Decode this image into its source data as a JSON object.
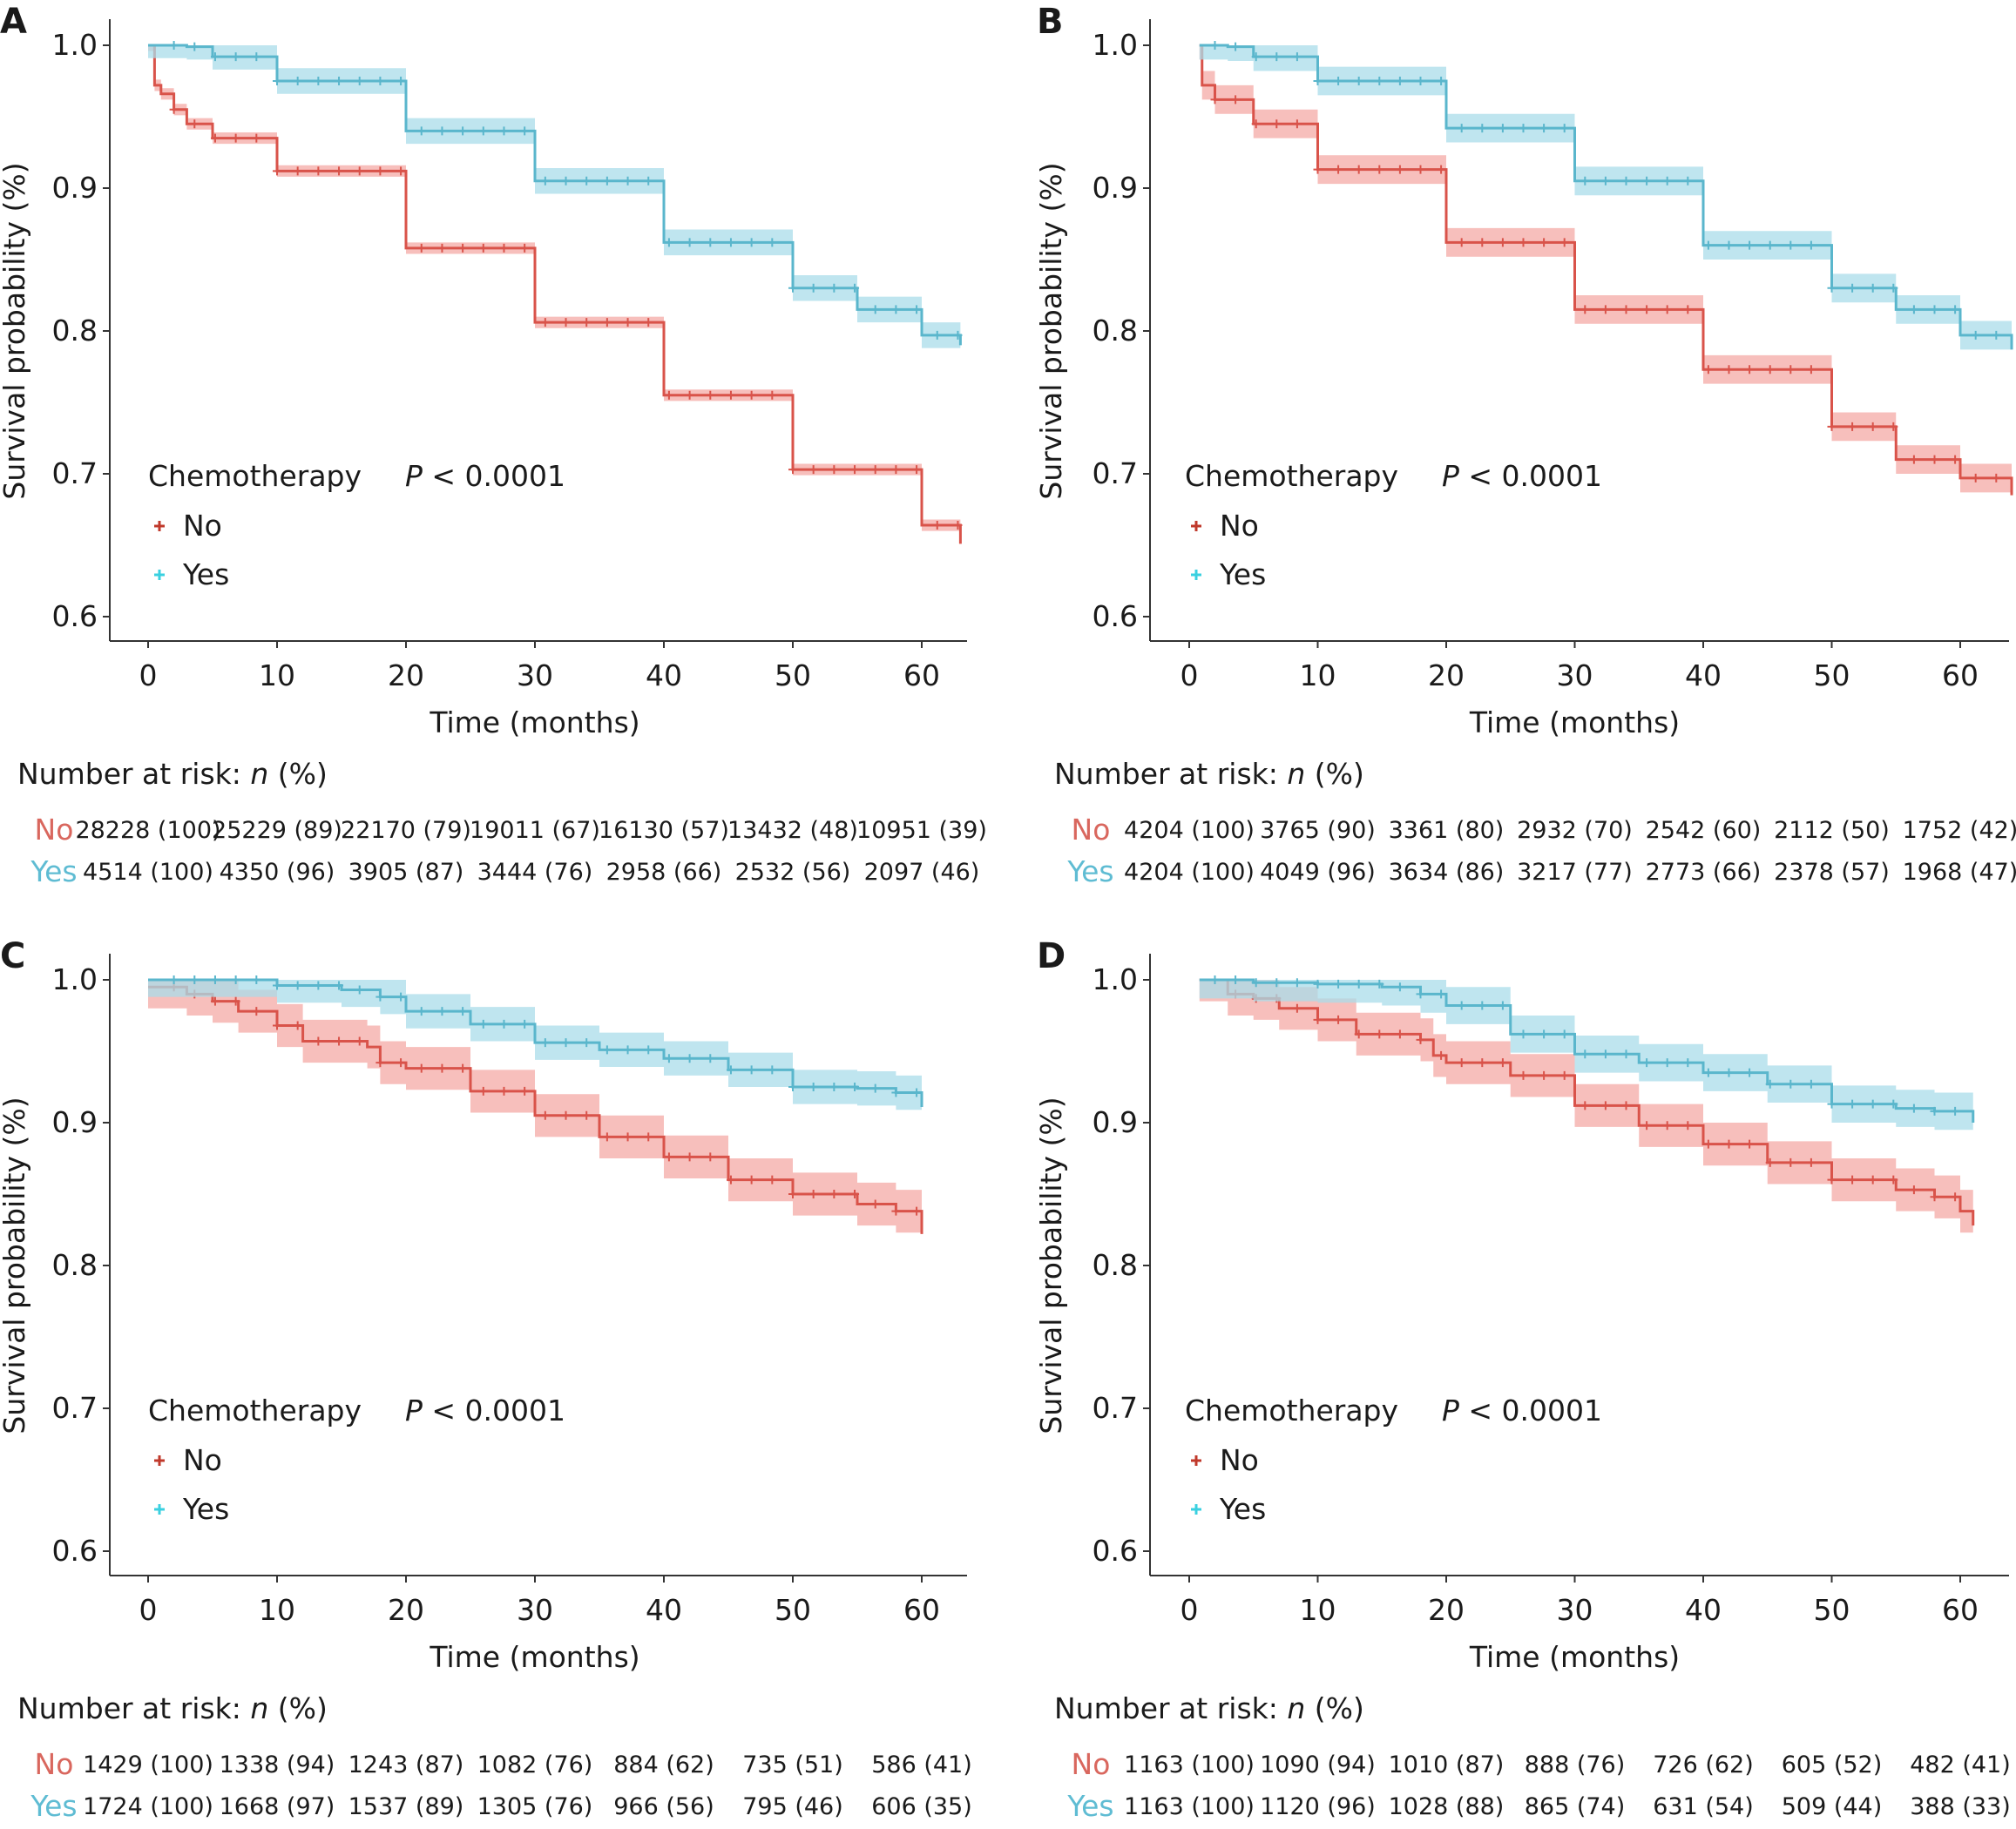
{
  "colors": {
    "no": "#d9534a",
    "no_band": "#f4aaa6",
    "yes": "#5ab6cc",
    "yes_band": "#aadcea",
    "no_label": "#d9675e",
    "yes_label": "#5fbcd3",
    "legend_no_marker": "#c0392b",
    "legend_yes_marker": "#3ad0e0"
  },
  "chart_data": [
    {
      "panel": "A",
      "type": "line",
      "xlabel": "Time (months)",
      "ylabel": "Survival probability (%)",
      "xlim": [
        0,
        63
      ],
      "ylim": [
        0.6,
        1.0
      ],
      "xticks": [
        "0",
        "10",
        "20",
        "30",
        "40",
        "50",
        "60"
      ],
      "yticks": [
        "0.6",
        "0.7",
        "0.8",
        "0.9",
        "1.0"
      ],
      "legend_title": "Chemotherapy",
      "p_label": "P",
      "p_rest": " < 0.0001",
      "series": [
        {
          "name": "No",
          "x": [
            0,
            0.5,
            1,
            2,
            3,
            5,
            10,
            20,
            30,
            40,
            50,
            60,
            63
          ],
          "y": [
            1.0,
            0.972,
            0.966,
            0.955,
            0.945,
            0.935,
            0.912,
            0.858,
            0.806,
            0.755,
            0.703,
            0.664,
            0.651
          ],
          "band": 0.004
        },
        {
          "name": "Yes",
          "x": [
            0,
            3,
            5,
            10,
            20,
            30,
            40,
            50,
            55,
            60,
            63
          ],
          "y": [
            1.0,
            0.999,
            0.992,
            0.975,
            0.94,
            0.905,
            0.862,
            0.83,
            0.815,
            0.797,
            0.79
          ],
          "band": 0.009
        }
      ],
      "risk_title": "Number at risk: ",
      "risk_italic": "n",
      "risk_tail": " (%)",
      "risk": [
        {
          "label": "No",
          "values": [
            "28228 (100)",
            "25229 (89)",
            "22170 (79)",
            "19011 (67)",
            "16130 (57)",
            "13432 (48)",
            "10951 (39)"
          ]
        },
        {
          "label": "Yes",
          "values": [
            "4514 (100)",
            "4350 (96)",
            "3905 (87)",
            "3444 (76)",
            "2958 (66)",
            "2532 (56)",
            "2097 (46)"
          ]
        }
      ]
    },
    {
      "panel": "B",
      "type": "line",
      "xlabel": "Time (months)",
      "ylabel": "Survival probability (%)",
      "xlim": [
        0,
        64
      ],
      "ylim": [
        0.6,
        1.0
      ],
      "xticks": [
        "0",
        "10",
        "20",
        "30",
        "40",
        "50",
        "60"
      ],
      "yticks": [
        "0.6",
        "0.7",
        "0.8",
        "0.9",
        "1.0"
      ],
      "legend_title": "Chemotherapy",
      "p_label": "P",
      "p_rest": " < 0.0001",
      "series": [
        {
          "name": "No",
          "x": [
            0.8,
            1,
            2,
            5,
            10,
            20,
            30,
            40,
            50,
            55,
            60,
            64
          ],
          "y": [
            1.0,
            0.972,
            0.962,
            0.945,
            0.913,
            0.862,
            0.815,
            0.773,
            0.733,
            0.71,
            0.697,
            0.685
          ],
          "band": 0.01
        },
        {
          "name": "Yes",
          "x": [
            0.8,
            3,
            5,
            10,
            20,
            30,
            40,
            50,
            55,
            60,
            64
          ],
          "y": [
            1.0,
            0.999,
            0.992,
            0.975,
            0.942,
            0.905,
            0.86,
            0.83,
            0.815,
            0.797,
            0.787
          ],
          "band": 0.01
        }
      ],
      "risk_title": "Number at risk: ",
      "risk_italic": "n",
      "risk_tail": " (%)",
      "risk": [
        {
          "label": "No",
          "values": [
            "4204 (100)",
            "3765 (90)",
            "3361 (80)",
            "2932 (70)",
            "2542 (60)",
            "2112 (50)",
            "1752 (42)"
          ]
        },
        {
          "label": "Yes",
          "values": [
            "4204 (100)",
            "4049 (96)",
            "3634 (86)",
            "3217 (77)",
            "2773 (66)",
            "2378 (57)",
            "1968 (47)"
          ]
        }
      ]
    },
    {
      "panel": "C",
      "type": "line",
      "xlabel": "Time (months)",
      "ylabel": "Survival probability (%)",
      "xlim": [
        0,
        60
      ],
      "ylim": [
        0.6,
        1.0
      ],
      "xticks": [
        "0",
        "10",
        "20",
        "30",
        "40",
        "50",
        "60"
      ],
      "yticks": [
        "0.6",
        "0.7",
        "0.8",
        "0.9",
        "1.0"
      ],
      "legend_title": "Chemotherapy",
      "p_label": "P",
      "p_rest": " < 0.0001",
      "series": [
        {
          "name": "No",
          "x": [
            0,
            3,
            5,
            7,
            10,
            12,
            15,
            17,
            18,
            20,
            25,
            30,
            35,
            40,
            45,
            50,
            55,
            58,
            60
          ],
          "y": [
            0.995,
            0.99,
            0.985,
            0.978,
            0.968,
            0.957,
            0.957,
            0.953,
            0.942,
            0.938,
            0.922,
            0.905,
            0.89,
            0.876,
            0.86,
            0.85,
            0.843,
            0.838,
            0.822
          ],
          "band": 0.015
        },
        {
          "name": "Yes",
          "x": [
            0,
            5,
            10,
            15,
            18,
            20,
            25,
            30,
            35,
            40,
            45,
            50,
            55,
            58,
            60
          ],
          "y": [
            1.0,
            1.0,
            0.996,
            0.993,
            0.988,
            0.978,
            0.969,
            0.956,
            0.951,
            0.945,
            0.937,
            0.925,
            0.924,
            0.921,
            0.911
          ],
          "band": 0.012
        }
      ],
      "risk_title": "Number at risk: ",
      "risk_italic": "n",
      "risk_tail": " (%)",
      "risk": [
        {
          "label": "No",
          "values": [
            "1429 (100)",
            "1338 (94)",
            "1243 (87)",
            "1082 (76)",
            "884 (62)",
            "735 (51)",
            "586 (41)"
          ]
        },
        {
          "label": "Yes",
          "values": [
            "1724 (100)",
            "1668 (97)",
            "1537 (89)",
            "1305 (76)",
            "966 (56)",
            "795 (46)",
            "606 (35)"
          ]
        }
      ]
    },
    {
      "panel": "D",
      "type": "line",
      "xlabel": "Time (months)",
      "ylabel": "Survival probability (%)",
      "xlim": [
        0,
        61
      ],
      "ylim": [
        0.6,
        1.0
      ],
      "xticks": [
        "0",
        "10",
        "20",
        "30",
        "40",
        "50",
        "60"
      ],
      "yticks": [
        "0.6",
        "0.7",
        "0.8",
        "0.9",
        "1.0"
      ],
      "legend_title": "Chemotherapy",
      "p_label": "P",
      "p_rest": " < 0.0001",
      "series": [
        {
          "name": "No",
          "x": [
            0.8,
            3,
            5,
            7,
            10,
            13,
            15,
            18,
            19,
            20,
            25,
            30,
            35,
            40,
            45,
            50,
            55,
            58,
            60,
            61
          ],
          "y": [
            1.0,
            0.99,
            0.987,
            0.98,
            0.972,
            0.962,
            0.962,
            0.958,
            0.947,
            0.942,
            0.933,
            0.912,
            0.898,
            0.885,
            0.872,
            0.86,
            0.853,
            0.848,
            0.838,
            0.828
          ],
          "band": 0.015
        },
        {
          "name": "Yes",
          "x": [
            0.8,
            5,
            10,
            15,
            18,
            20,
            25,
            30,
            35,
            40,
            45,
            50,
            55,
            58,
            61
          ],
          "y": [
            1.0,
            0.998,
            0.997,
            0.995,
            0.99,
            0.982,
            0.962,
            0.948,
            0.942,
            0.935,
            0.927,
            0.913,
            0.91,
            0.908,
            0.9
          ],
          "band": 0.013
        }
      ],
      "risk_title": "Number at risk: ",
      "risk_italic": "n",
      "risk_tail": " (%)",
      "risk": [
        {
          "label": "No",
          "values": [
            "1163 (100)",
            "1090 (94)",
            "1010 (87)",
            "888 (76)",
            "726 (62)",
            "605 (52)",
            "482 (41)"
          ]
        },
        {
          "label": "Yes",
          "values": [
            "1163 (100)",
            "1120 (96)",
            "1028 (88)",
            "865 (74)",
            "631 (54)",
            "509 (44)",
            "388 (33)"
          ]
        }
      ]
    }
  ]
}
